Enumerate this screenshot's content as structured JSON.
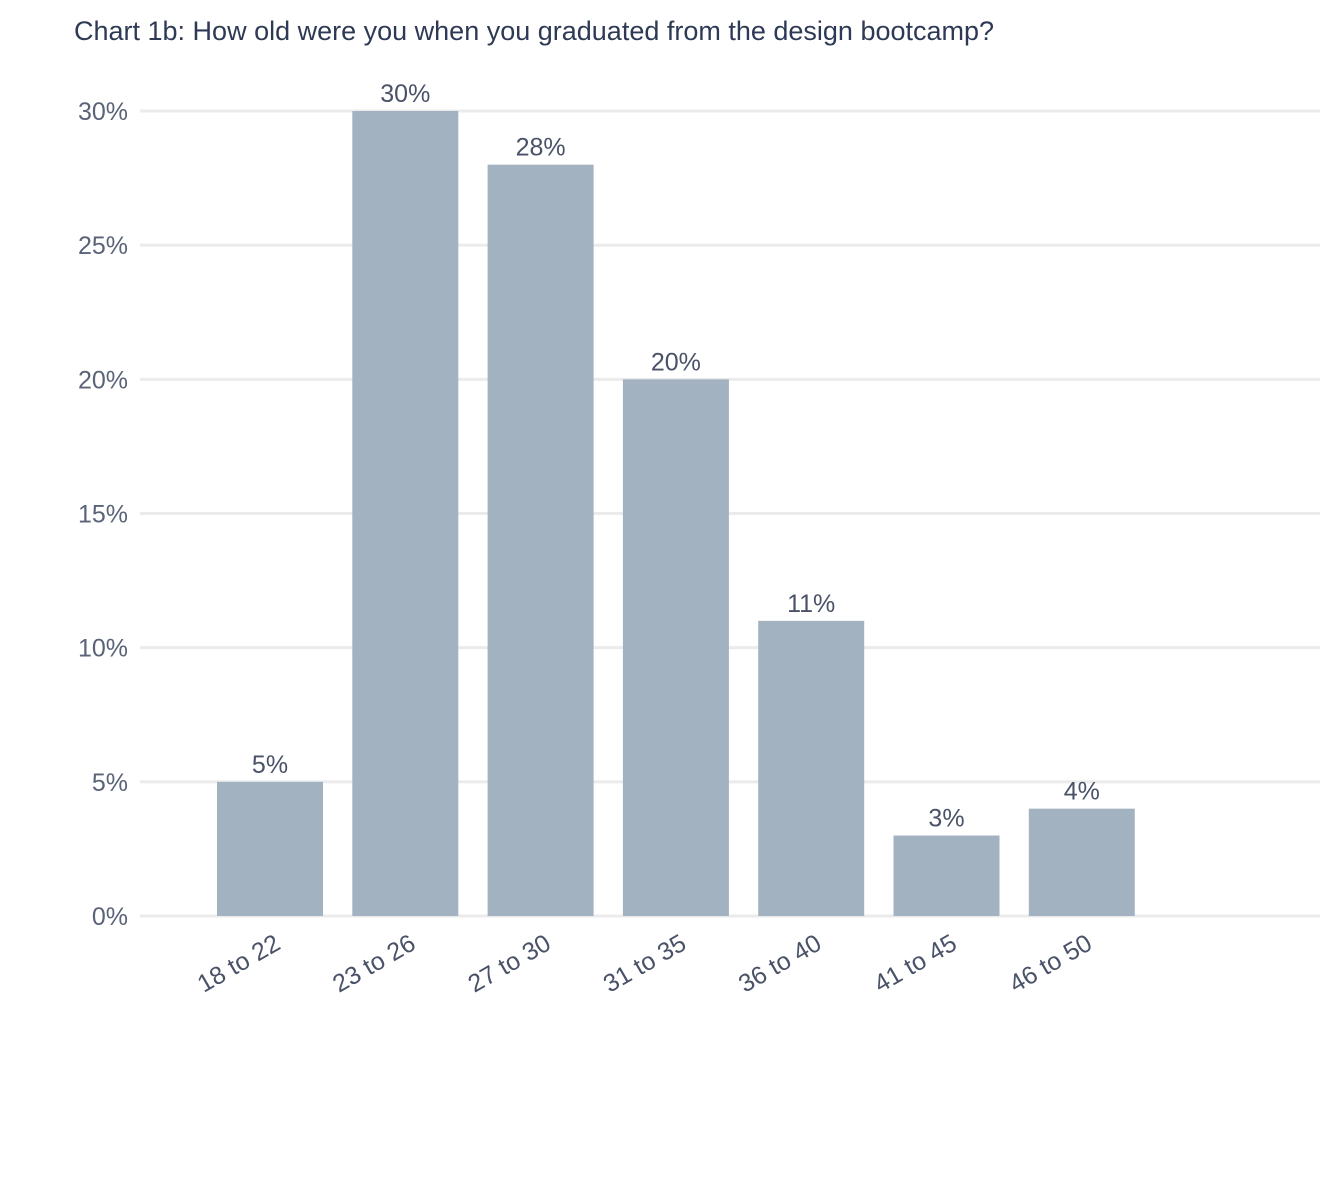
{
  "chart_data": {
    "type": "bar",
    "title": "Chart 1b: How old were you when you graduated from the design bootcamp?",
    "xlabel": "",
    "ylabel": "",
    "categories": [
      "18 to 22",
      "23 to 26",
      "27 to 30",
      "31 to 35",
      "36 to 40",
      "41 to 45",
      "46 to 50"
    ],
    "values": [
      5,
      30,
      28,
      20,
      11,
      3,
      4
    ],
    "value_labels": [
      "5%",
      "30%",
      "28%",
      "20%",
      "11%",
      "3%",
      "4%"
    ],
    "ylim": [
      0,
      30
    ],
    "yticks": [
      0,
      5,
      10,
      15,
      20,
      25,
      30
    ],
    "ytick_labels": [
      "0%",
      "5%",
      "10%",
      "15%",
      "20%",
      "25%",
      "30%"
    ],
    "grid": true,
    "legend": "none",
    "colors": {
      "bar": "#a3b2c0",
      "grid": "#ebebeb",
      "title": "#2e3a55",
      "text": "#4a5268"
    }
  }
}
